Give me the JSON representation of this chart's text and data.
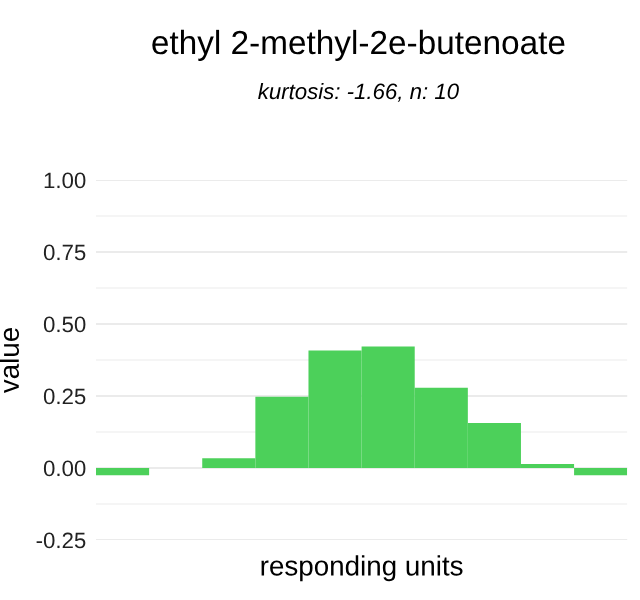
{
  "chart_data": {
    "type": "bar",
    "title": "ethyl 2-methyl-2e-butenoate",
    "subtitle": "kurtosis: -1.66, n: 10",
    "xlabel": "responding units",
    "ylabel": "value",
    "categories": [
      null,
      null,
      null,
      null,
      null,
      null,
      null,
      null,
      null,
      null
    ],
    "values": [
      -0.025,
      0,
      0.034,
      0.247,
      0.408,
      0.422,
      0.279,
      0.156,
      0.014,
      -0.025
    ],
    "color": "#4cd05a",
    "ylim": [
      -0.25,
      1.0
    ],
    "yticks": [
      {
        "value": -0.25,
        "label": "-0.25"
      },
      {
        "value": -0.125,
        "label": null
      },
      {
        "value": 0,
        "label": "0.00"
      },
      {
        "value": 0.125,
        "label": null
      },
      {
        "value": 0.25,
        "label": "0.25"
      },
      {
        "value": 0.375,
        "label": null
      },
      {
        "value": 0.5,
        "label": "0.50"
      },
      {
        "value": 0.625,
        "label": null
      },
      {
        "value": 0.75,
        "label": "0.75"
      },
      {
        "value": 0.875,
        "label": null
      },
      {
        "value": 1.0,
        "label": "1.00"
      }
    ],
    "grid": "y",
    "legend": false
  }
}
